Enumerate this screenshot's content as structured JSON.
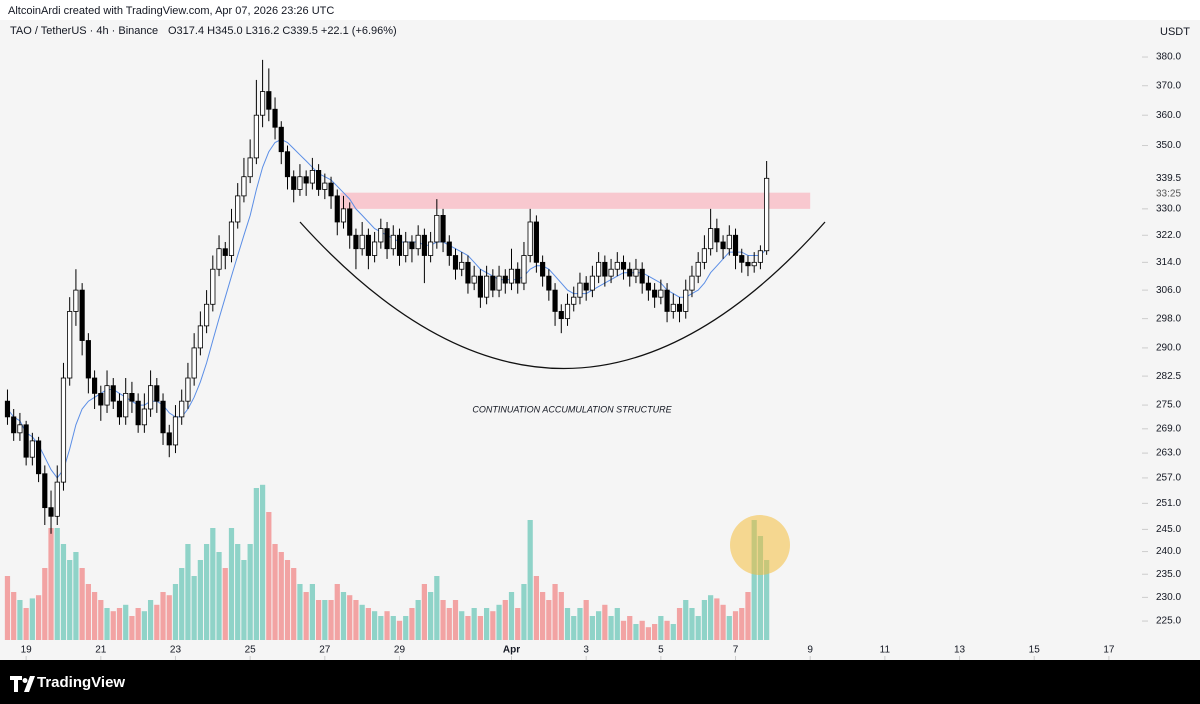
{
  "header": {
    "credit": "AltcoinArdi created with TradingView.com, Apr 07, 2026 23:26 UTC"
  },
  "footer": {
    "logo": "TradingView"
  },
  "chart_data": {
    "type": "candlestick",
    "symbol": "TAO / TetherUS · 4h · Binance",
    "ohlc_text": "O317.4  H345.0  L316.2  C339.5  +22.1 (+6.96%)",
    "currency": "USDT",
    "last_price": {
      "value": 339.5,
      "label": "339.5"
    },
    "countdown": "33:25",
    "annotation": "CONTINUATION ACCUMULATION STRUCTURE",
    "log_scale": true,
    "up_color": "#ffffff",
    "down_color": "#000000",
    "vol_up_color": "#8fd3c8",
    "vol_down_color": "#f2a3a3",
    "ma_color": "#5b8ee6",
    "zone_color": "#f8c8cf",
    "xlim": [
      -1.2,
      182
    ],
    "ylim": [
      217,
      393.3
    ],
    "vlim": [
      0,
      100
    ],
    "xticks": [
      {
        "value": 3,
        "label": "19"
      },
      {
        "value": 15,
        "label": "21"
      },
      {
        "value": 27,
        "label": "23"
      },
      {
        "value": 39,
        "label": "25"
      },
      {
        "value": 51,
        "label": "27"
      },
      {
        "value": 63,
        "label": "29"
      },
      {
        "value": 81,
        "label": "Apr"
      },
      {
        "value": 93,
        "label": "3"
      },
      {
        "value": 105,
        "label": "5"
      },
      {
        "value": 117,
        "label": "7"
      },
      {
        "value": 129,
        "label": "9"
      },
      {
        "value": 141,
        "label": "11"
      },
      {
        "value": 153,
        "label": "13"
      },
      {
        "value": 165,
        "label": "15"
      },
      {
        "value": 177,
        "label": "17"
      }
    ],
    "yticks": [
      {
        "value": 380,
        "label": "380.0"
      },
      {
        "value": 370,
        "label": "370.0"
      },
      {
        "value": 360,
        "label": "360.0"
      },
      {
        "value": 350,
        "label": "350.0"
      },
      {
        "value": 330,
        "label": "330.0"
      },
      {
        "value": 322,
        "label": "322.0"
      },
      {
        "value": 314,
        "label": "314.0"
      },
      {
        "value": 306,
        "label": "306.0"
      },
      {
        "value": 298,
        "label": "298.0"
      },
      {
        "value": 290,
        "label": "290.0"
      },
      {
        "value": 282.5,
        "label": "282.5"
      },
      {
        "value": 275,
        "label": "275.0"
      },
      {
        "value": 269,
        "label": "269.0"
      },
      {
        "value": 263,
        "label": "263.0"
      },
      {
        "value": 257,
        "label": "257.0"
      },
      {
        "value": 251,
        "label": "251.0"
      },
      {
        "value": 245,
        "label": "245.0"
      },
      {
        "value": 240,
        "label": "240.0"
      },
      {
        "value": 235,
        "label": "235.0"
      },
      {
        "value": 230,
        "label": "230.0"
      },
      {
        "value": 225,
        "label": "225.0"
      }
    ],
    "zone": {
      "low": 330,
      "high": 335,
      "start": 53.5,
      "end": 129
    },
    "candles": [
      [
        276,
        279,
        270,
        272
      ],
      [
        272,
        274,
        266,
        268
      ],
      [
        268,
        273,
        266,
        270
      ],
      [
        270,
        271,
        260,
        262
      ],
      [
        262,
        268,
        260,
        266
      ],
      [
        266,
        267,
        256,
        258
      ],
      [
        258,
        260,
        246,
        250
      ],
      [
        250,
        254,
        244,
        248
      ],
      [
        248,
        260,
        246,
        256
      ],
      [
        256,
        286,
        254,
        282
      ],
      [
        282,
        304,
        280,
        300
      ],
      [
        300,
        312,
        296,
        306
      ],
      [
        306,
        308,
        288,
        292
      ],
      [
        292,
        294,
        278,
        282
      ],
      [
        282,
        284,
        274,
        278
      ],
      [
        278,
        280,
        271,
        275
      ],
      [
        275,
        284,
        273,
        280
      ],
      [
        280,
        282,
        274,
        276
      ],
      [
        276,
        278,
        270,
        272
      ],
      [
        272,
        282,
        270,
        278
      ],
      [
        278,
        281,
        273,
        276
      ],
      [
        276,
        278,
        268,
        270
      ],
      [
        270,
        278,
        268,
        274
      ],
      [
        274,
        284,
        272,
        280
      ],
      [
        280,
        282,
        273,
        276
      ],
      [
        276,
        278,
        265,
        268
      ],
      [
        268,
        270,
        262,
        265
      ],
      [
        265,
        275,
        263,
        272
      ],
      [
        272,
        279,
        270,
        276
      ],
      [
        276,
        286,
        274,
        282
      ],
      [
        282,
        294,
        280,
        290
      ],
      [
        290,
        300,
        288,
        296
      ],
      [
        296,
        306,
        294,
        302
      ],
      [
        302,
        316,
        300,
        312
      ],
      [
        312,
        322,
        310,
        318
      ],
      [
        318,
        320,
        312,
        316
      ],
      [
        316,
        330,
        314,
        326
      ],
      [
        326,
        338,
        324,
        334
      ],
      [
        334,
        346,
        332,
        340
      ],
      [
        340,
        352,
        338,
        346
      ],
      [
        346,
        372,
        344,
        360
      ],
      [
        360,
        379,
        356,
        368
      ],
      [
        368,
        376,
        358,
        362
      ],
      [
        362,
        366,
        352,
        356
      ],
      [
        356,
        358,
        344,
        348
      ],
      [
        348,
        350,
        336,
        340
      ],
      [
        340,
        342,
        332,
        336
      ],
      [
        336,
        344,
        334,
        340
      ],
      [
        340,
        342,
        334,
        338
      ],
      [
        338,
        346,
        336,
        342
      ],
      [
        342,
        344,
        334,
        336
      ],
      [
        336,
        341,
        333,
        338
      ],
      [
        338,
        340,
        330,
        334
      ],
      [
        334,
        336,
        322,
        326
      ],
      [
        326,
        334,
        324,
        330
      ],
      [
        330,
        332,
        318,
        322
      ],
      [
        322,
        324,
        312,
        318
      ],
      [
        318,
        326,
        316,
        322
      ],
      [
        322,
        324,
        312,
        316
      ],
      [
        316,
        323,
        314,
        320
      ],
      [
        320,
        327,
        318,
        324
      ],
      [
        324,
        326,
        315,
        318
      ],
      [
        318,
        325,
        316,
        322
      ],
      [
        322,
        324,
        313,
        316
      ],
      [
        316,
        323,
        314,
        320
      ],
      [
        320,
        322,
        314,
        318
      ],
      [
        318,
        325,
        316,
        322
      ],
      [
        322,
        324,
        308,
        316
      ],
      [
        316,
        323,
        314,
        320
      ],
      [
        320,
        333,
        318,
        328
      ],
      [
        328,
        330,
        317,
        320
      ],
      [
        320,
        322,
        313,
        316
      ],
      [
        316,
        318,
        309,
        312
      ],
      [
        312,
        317,
        310,
        314
      ],
      [
        314,
        316,
        305,
        308
      ],
      [
        308,
        313,
        306,
        310
      ],
      [
        310,
        312,
        301,
        304
      ],
      [
        304,
        313,
        302,
        310
      ],
      [
        310,
        312,
        304,
        306
      ],
      [
        306,
        313,
        304,
        310
      ],
      [
        310,
        312,
        305,
        308
      ],
      [
        308,
        318,
        306,
        312
      ],
      [
        312,
        314,
        305,
        308
      ],
      [
        308,
        320,
        306,
        316
      ],
      [
        316,
        330,
        314,
        326
      ],
      [
        326,
        328,
        311,
        314
      ],
      [
        314,
        316,
        307,
        310
      ],
      [
        310,
        312,
        303,
        306
      ],
      [
        306,
        308,
        296,
        300
      ],
      [
        300,
        302,
        294,
        298
      ],
      [
        298,
        305,
        296,
        302
      ],
      [
        302,
        307,
        300,
        304
      ],
      [
        304,
        311,
        302,
        308
      ],
      [
        308,
        310,
        303,
        306
      ],
      [
        306,
        313,
        304,
        310
      ],
      [
        310,
        317,
        308,
        314
      ],
      [
        314,
        316,
        307,
        310
      ],
      [
        310,
        315,
        308,
        312
      ],
      [
        312,
        317,
        310,
        314
      ],
      [
        314,
        316,
        309,
        312
      ],
      [
        312,
        314,
        307,
        310
      ],
      [
        310,
        315,
        308,
        312
      ],
      [
        312,
        314,
        305,
        308
      ],
      [
        308,
        310,
        303,
        306
      ],
      [
        306,
        308,
        301,
        304
      ],
      [
        304,
        309,
        302,
        306
      ],
      [
        306,
        308,
        297,
        300
      ],
      [
        300,
        305,
        298,
        302
      ],
      [
        302,
        304,
        297,
        300
      ],
      [
        300,
        309,
        298,
        306
      ],
      [
        306,
        313,
        304,
        310
      ],
      [
        310,
        317,
        308,
        314
      ],
      [
        314,
        322,
        312,
        318
      ],
      [
        318,
        330,
        316,
        324
      ],
      [
        324,
        327,
        317,
        320
      ],
      [
        320,
        322,
        315,
        318
      ],
      [
        318,
        325,
        316,
        322
      ],
      [
        322,
        324,
        312,
        316
      ],
      [
        316,
        318,
        311,
        314
      ],
      [
        314,
        316,
        310,
        313
      ],
      [
        313,
        317,
        311,
        314
      ],
      [
        314,
        319,
        312,
        317.4
      ],
      [
        317.4,
        345,
        316.2,
        339.5
      ]
    ],
    "volume": [
      40,
      30,
      25,
      20,
      26,
      28,
      45,
      70,
      70,
      60,
      50,
      55,
      45,
      35,
      30,
      25,
      20,
      18,
      20,
      22,
      15,
      20,
      18,
      25,
      22,
      30,
      28,
      35,
      45,
      60,
      40,
      50,
      60,
      70,
      55,
      45,
      70,
      60,
      50,
      60,
      95,
      97,
      80,
      60,
      55,
      50,
      45,
      35,
      30,
      35,
      25,
      25,
      25,
      35,
      30,
      28,
      25,
      22,
      20,
      18,
      15,
      18,
      15,
      12,
      15,
      20,
      25,
      35,
      30,
      40,
      25,
      20,
      25,
      18,
      15,
      20,
      15,
      20,
      18,
      22,
      25,
      30,
      20,
      35,
      75,
      40,
      30,
      25,
      35,
      30,
      20,
      15,
      20,
      25,
      15,
      18,
      22,
      15,
      20,
      12,
      15,
      10,
      12,
      8,
      10,
      15,
      12,
      10,
      20,
      25,
      20,
      15,
      25,
      28,
      26,
      22,
      15,
      18,
      20,
      30,
      75,
      65,
      50
    ],
    "ma": [
      274,
      272,
      271,
      268,
      267,
      265,
      262,
      259,
      257,
      259,
      264,
      270,
      274,
      276,
      277,
      278,
      279,
      279,
      278,
      277,
      276,
      275,
      275,
      276,
      276,
      275,
      273,
      272,
      272,
      274,
      277,
      281,
      286,
      292,
      298,
      304,
      310,
      316,
      322,
      328,
      336,
      343,
      348,
      351,
      352,
      351,
      349,
      347,
      345,
      343,
      341,
      340,
      339,
      337,
      335,
      333,
      330,
      328,
      326,
      324,
      323,
      322,
      321,
      320,
      320,
      320,
      320,
      319,
      319,
      320,
      320,
      319,
      318,
      317,
      316,
      314,
      312,
      311,
      310,
      309,
      309,
      309,
      309,
      310,
      312,
      313,
      313,
      312,
      310,
      308,
      306,
      305,
      305,
      305,
      306,
      307,
      308,
      309,
      310,
      311,
      311,
      311,
      311,
      310,
      309,
      308,
      306,
      305,
      304,
      304,
      305,
      306,
      308,
      311,
      313,
      315,
      317,
      317,
      317,
      316,
      316,
      316,
      318
    ]
  }
}
